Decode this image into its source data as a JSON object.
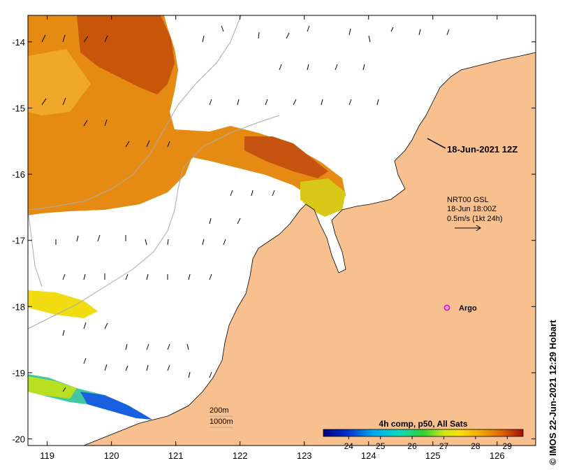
{
  "map": {
    "lon_ticks": [
      119,
      120,
      121,
      122,
      123,
      124,
      125,
      126
    ],
    "lat_ticks": [
      -14,
      -15,
      -16,
      -17,
      -18,
      -19,
      -20
    ],
    "lon_range": [
      118.7,
      126.6
    ],
    "lat_range": [
      -20.1,
      -13.6
    ]
  },
  "annotations": {
    "track_date": "18-Jun-2021 12Z",
    "current_source": "NRT00 GSL",
    "current_time": "18-Jun 18:00Z",
    "current_scale": "0.5m/s (1kt 24h)",
    "argo_label": "Argo",
    "depth_contour_1": "200m",
    "depth_contour_2": "1000m"
  },
  "legend": {
    "title": "4h comp, p50, All Sats",
    "ticks": [
      "24",
      "25",
      "26",
      "27",
      "28",
      "29"
    ],
    "min": 23.2,
    "max": 29.5
  },
  "credit": "© IMOS 22-Jun-2021 12:29 Hobart",
  "colors": {
    "land": "#f9c08f",
    "ocean": "#ffffff",
    "argo": "#e020e0"
  }
}
